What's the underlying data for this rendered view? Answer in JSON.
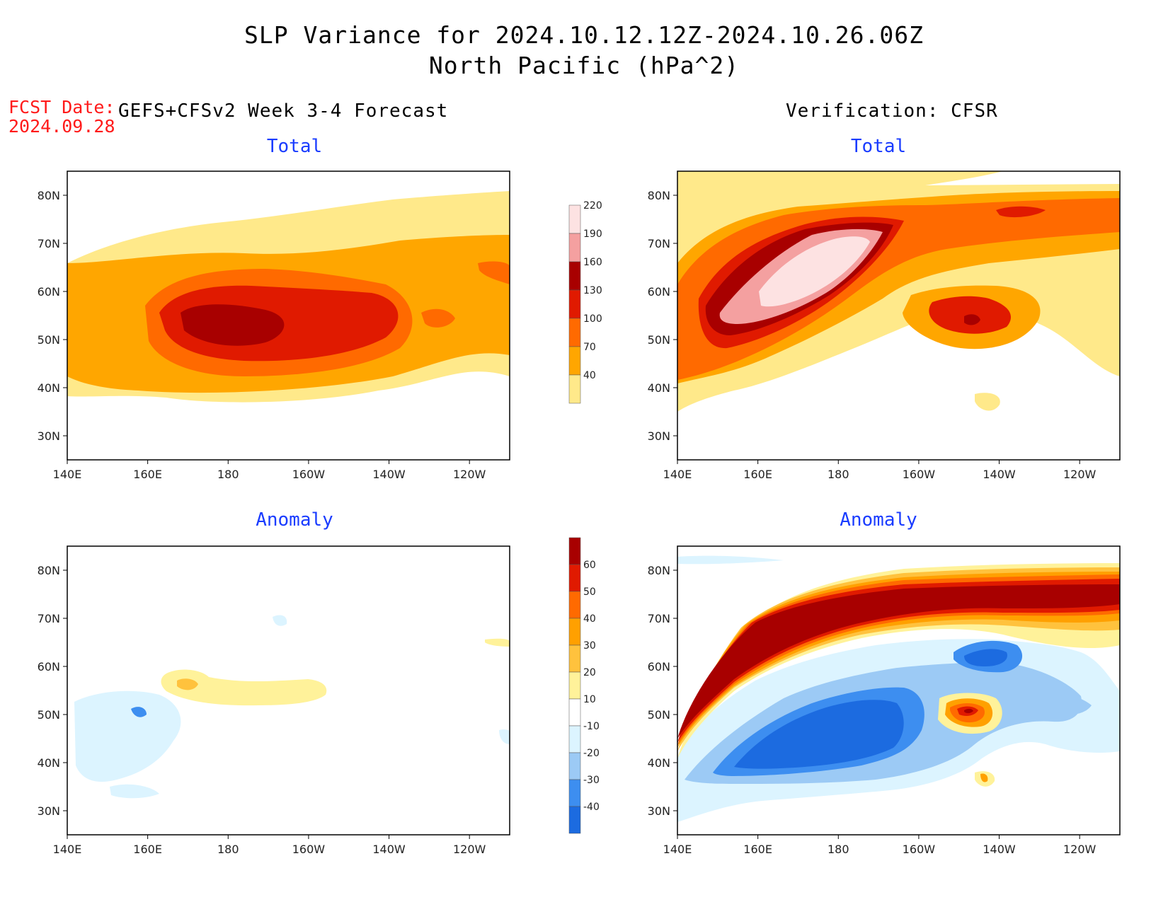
{
  "title": {
    "line1": "SLP Variance for 2024.10.12.12Z-2024.10.26.06Z",
    "line2": "North Pacific (hPa^2)"
  },
  "fcst_date": {
    "label": "FCST Date:",
    "value": "2024.09.28"
  },
  "left_header": "GEFS+CFSv2 Week 3-4 Forecast",
  "right_header": "Verification: CFSR",
  "panels": {
    "forecast_total": {
      "subtitle": "Total"
    },
    "verif_total": {
      "subtitle": "Total"
    },
    "forecast_anom": {
      "subtitle": "Anomaly"
    },
    "verif_anom": {
      "subtitle": "Anomaly"
    }
  },
  "axes": {
    "lon_ticks": [
      "140E",
      "160E",
      "180",
      "160W",
      "140W",
      "120W"
    ],
    "lat_ticks": [
      "30N",
      "40N",
      "50N",
      "60N",
      "70N",
      "80N"
    ],
    "lon_range": [
      "140E",
      "110W"
    ],
    "lat_range": [
      "25N",
      "85N"
    ]
  },
  "colorbars": {
    "total": {
      "levels": [
        "40",
        "70",
        "100",
        "130",
        "160",
        "190",
        "220"
      ],
      "colors": [
        "#ffe98a",
        "#ffa600",
        "#ff6a00",
        "#e01a00",
        "#a80000",
        "#f4a0a0",
        "#fde2e2"
      ]
    },
    "anomaly": {
      "levels": [
        "-40",
        "-30",
        "-20",
        "-10",
        "10",
        "20",
        "30",
        "40",
        "50",
        "60"
      ],
      "colors": [
        "#1c6be0",
        "#3d8ef0",
        "#9ccaf5",
        "#dcf4ff",
        "#ffffff",
        "#fff29a",
        "#ffc23d",
        "#ffa000",
        "#ff6a00",
        "#e01a00",
        "#a80000"
      ]
    }
  }
}
